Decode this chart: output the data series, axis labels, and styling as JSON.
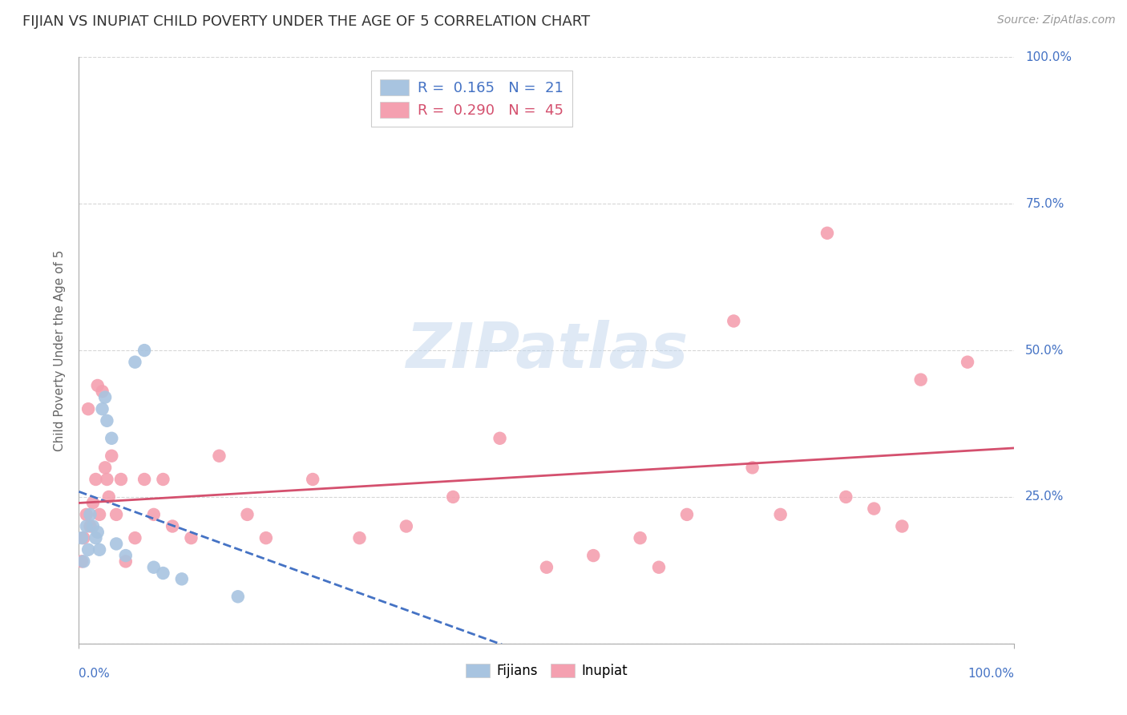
{
  "title": "FIJIAN VS INUPIAT CHILD POVERTY UNDER THE AGE OF 5 CORRELATION CHART",
  "source": "Source: ZipAtlas.com",
  "ylabel": "Child Poverty Under the Age of 5",
  "fijian_color": "#a8c4e0",
  "inupiat_color": "#f4a0b0",
  "fijian_line_color": "#4472c4",
  "inupiat_line_color": "#d4506e",
  "R_fijian": 0.165,
  "N_fijian": 21,
  "R_inupiat": 0.29,
  "N_inupiat": 45,
  "fijian_x": [
    0.3,
    0.5,
    0.8,
    1.0,
    1.2,
    1.5,
    1.8,
    2.0,
    2.2,
    2.5,
    2.8,
    3.0,
    3.5,
    4.0,
    5.0,
    6.0,
    7.0,
    8.0,
    9.0,
    11.0,
    17.0
  ],
  "fijian_y": [
    18,
    14,
    20,
    16,
    22,
    20,
    18,
    19,
    16,
    40,
    42,
    38,
    35,
    17,
    15,
    48,
    50,
    13,
    12,
    11,
    8
  ],
  "inupiat_x": [
    0.3,
    0.5,
    0.8,
    1.0,
    1.2,
    1.5,
    1.8,
    2.0,
    2.2,
    2.5,
    2.8,
    3.0,
    3.2,
    3.5,
    4.0,
    4.5,
    5.0,
    6.0,
    7.0,
    8.0,
    9.0,
    10.0,
    12.0,
    15.0,
    18.0,
    20.0,
    25.0,
    30.0,
    35.0,
    40.0,
    45.0,
    50.0,
    55.0,
    60.0,
    62.0,
    65.0,
    70.0,
    72.0,
    75.0,
    80.0,
    82.0,
    85.0,
    88.0,
    90.0,
    95.0
  ],
  "inupiat_y": [
    14,
    18,
    22,
    40,
    20,
    24,
    28,
    44,
    22,
    43,
    30,
    28,
    25,
    32,
    22,
    28,
    14,
    18,
    28,
    22,
    28,
    20,
    18,
    32,
    22,
    18,
    28,
    18,
    20,
    25,
    35,
    13,
    15,
    18,
    13,
    22,
    55,
    30,
    22,
    70,
    25,
    23,
    20,
    45,
    48
  ],
  "watermark": "ZIPatlas",
  "background_color": "#ffffff",
  "grid_color": "#cccccc",
  "title_color": "#333333",
  "axis_label_color": "#4472c4"
}
